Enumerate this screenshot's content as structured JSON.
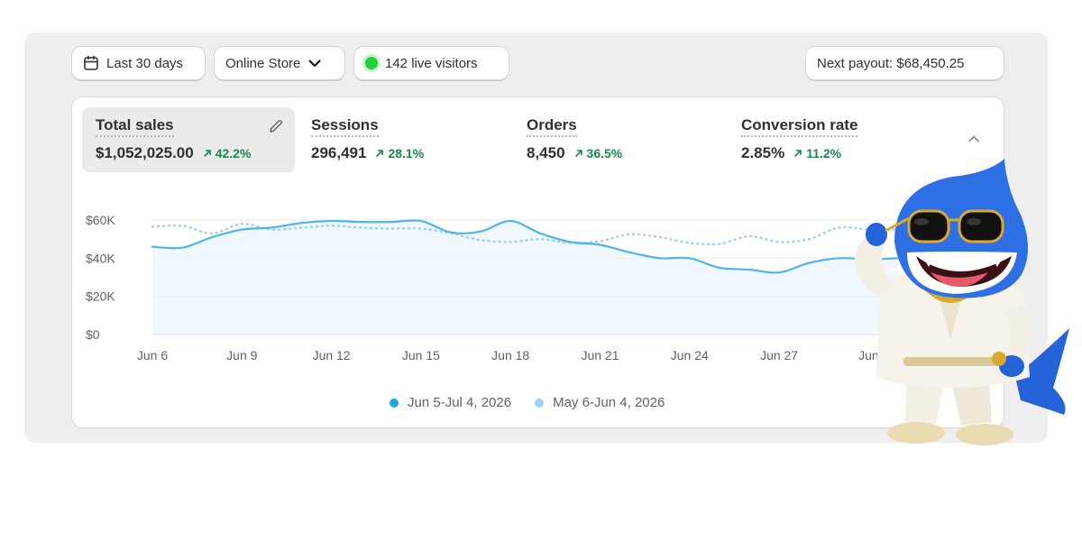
{
  "toolbar": {
    "date_range": "Last 30 days",
    "channel": "Online Store",
    "live_visitors": "142 live visitors",
    "payout": "Next payout: $68,450.25"
  },
  "metrics": [
    {
      "label": "Total sales",
      "value": "$1,052,025.00",
      "change": "42.2%"
    },
    {
      "label": "Sessions",
      "value": "296,491",
      "change": "28.1%"
    },
    {
      "label": "Orders",
      "value": "8,450",
      "change": "36.5%"
    },
    {
      "label": "Conversion rate",
      "value": "2.85%",
      "change": "11.2%"
    }
  ],
  "chart_data": {
    "type": "line",
    "x": [
      "Jun 6",
      "Jun 7",
      "Jun 8",
      "Jun 9",
      "Jun 10",
      "Jun 11",
      "Jun 12",
      "Jun 13",
      "Jun 14",
      "Jun 15",
      "Jun 16",
      "Jun 17",
      "Jun 18",
      "Jun 19",
      "Jun 20",
      "Jun 21",
      "Jun 22",
      "Jun 23",
      "Jun 24",
      "Jun 25",
      "Jun 26",
      "Jun 27",
      "Jun 28",
      "Jun 29",
      "Jun 30",
      "Jul 1"
    ],
    "x_tick_labels": [
      "Jun 6",
      "Jun 9",
      "Jun 12",
      "Jun 15",
      "Jun 18",
      "Jun 21",
      "Jun 24",
      "Jun 27",
      "Jun"
    ],
    "y_ticks": [
      "$0",
      "$20K",
      "$40K",
      "$60K"
    ],
    "ylim": [
      0,
      60000
    ],
    "grid": true,
    "legend_position": "bottom",
    "series": [
      {
        "name": "Jun 5-Jul 4, 2026",
        "color": "#4bb5ec",
        "style": "solid",
        "values": [
          46000,
          45500,
          51000,
          55000,
          56000,
          58500,
          59500,
          59000,
          59000,
          59500,
          53500,
          54000,
          59500,
          53000,
          48500,
          47000,
          43000,
          40000,
          40000,
          35000,
          34000,
          32500,
          37500,
          40000,
          39500,
          40000
        ]
      },
      {
        "name": "May 6-Jun 4, 2026",
        "color": "#9ccfee",
        "style": "dotted",
        "values": [
          56500,
          57000,
          53000,
          58000,
          55000,
          56000,
          57000,
          56000,
          55500,
          55500,
          53000,
          49500,
          48500,
          50000,
          48000,
          49000,
          52500,
          51000,
          48000,
          47500,
          51500,
          48500,
          50000,
          56000,
          55000,
          55000
        ]
      }
    ]
  }
}
